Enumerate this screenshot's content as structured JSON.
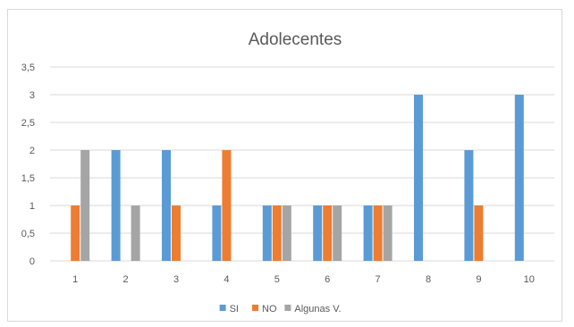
{
  "chart_data": {
    "type": "bar",
    "title": "Adolecentes",
    "categories": [
      "1",
      "2",
      "3",
      "4",
      "5",
      "6",
      "7",
      "8",
      "9",
      "10"
    ],
    "series": [
      {
        "name": "SI",
        "color": "#5b9bd5",
        "values": [
          0,
          2,
          2,
          1,
          1,
          1,
          1,
          3,
          2,
          3
        ]
      },
      {
        "name": "NO",
        "color": "#ed7d31",
        "values": [
          1,
          0,
          1,
          2,
          1,
          1,
          1,
          0,
          1,
          0
        ]
      },
      {
        "name": "Algunas V.",
        "color": "#a5a5a5",
        "values": [
          2,
          1,
          0,
          0,
          1,
          1,
          1,
          0,
          0,
          0
        ]
      }
    ],
    "y_ticks": [
      "0",
      "0,5",
      "1",
      "1,5",
      "2",
      "2,5",
      "3",
      "3,5"
    ],
    "ylim": [
      0,
      3.5
    ],
    "grid": true,
    "legend_position": "bottom"
  }
}
